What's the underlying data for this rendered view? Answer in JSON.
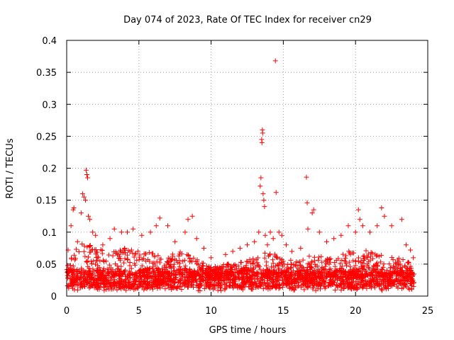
{
  "chart_data": {
    "type": "scatter",
    "title": "Day 074 of 2023, Rate Of TEC Index for receiver cn29",
    "xlabel": "GPS time / hours",
    "ylabel": "ROTI / TECUs",
    "xlim": [
      0,
      25
    ],
    "ylim": [
      0,
      0.4
    ],
    "x_ticks": [
      0,
      5,
      10,
      15,
      20,
      25
    ],
    "x_tick_labels": [
      "0",
      "5",
      "10",
      "15",
      "20",
      "25"
    ],
    "y_ticks": [
      0,
      0.05,
      0.1,
      0.15,
      0.2,
      0.25,
      0.3,
      0.35,
      0.4
    ],
    "y_tick_labels": [
      "0",
      "0.05",
      "0.1",
      "0.15",
      "0.2",
      "0.25",
      "0.3",
      "0.35",
      "0.4"
    ],
    "grid": true,
    "marker": "+",
    "point_color": "#ff0000",
    "grid_color": "#a0a0a0",
    "series": [
      {
        "points": [
          [
            0.1,
            0.072
          ],
          [
            0.3,
            0.11
          ],
          [
            0.45,
            0.135
          ],
          [
            0.5,
            0.138
          ],
          [
            0.75,
            0.085
          ],
          [
            1.0,
            0.13
          ],
          [
            1.1,
            0.16
          ],
          [
            1.2,
            0.155
          ],
          [
            1.3,
            0.15
          ],
          [
            1.35,
            0.197
          ],
          [
            1.4,
            0.19
          ],
          [
            1.45,
            0.185
          ],
          [
            1.5,
            0.125
          ],
          [
            1.6,
            0.12
          ],
          [
            1.8,
            0.1
          ],
          [
            2.0,
            0.095
          ],
          [
            2.5,
            0.08
          ],
          [
            3.0,
            0.09
          ],
          [
            3.3,
            0.105
          ],
          [
            3.8,
            0.1
          ],
          [
            4.2,
            0.1
          ],
          [
            4.6,
            0.105
          ],
          [
            5.2,
            0.095
          ],
          [
            5.8,
            0.1
          ],
          [
            6.2,
            0.11
          ],
          [
            6.45,
            0.122
          ],
          [
            7.0,
            0.11
          ],
          [
            7.5,
            0.085
          ],
          [
            8.2,
            0.1
          ],
          [
            8.4,
            0.12
          ],
          [
            8.7,
            0.125
          ],
          [
            9.0,
            0.09
          ],
          [
            9.5,
            0.075
          ],
          [
            10.0,
            0.06
          ],
          [
            11.0,
            0.065
          ],
          [
            11.5,
            0.07
          ],
          [
            12.0,
            0.075
          ],
          [
            12.5,
            0.08
          ],
          [
            13.0,
            0.085
          ],
          [
            13.3,
            0.1
          ],
          [
            13.4,
            0.172
          ],
          [
            13.45,
            0.185
          ],
          [
            13.5,
            0.245
          ],
          [
            13.52,
            0.24
          ],
          [
            13.55,
            0.26
          ],
          [
            13.57,
            0.255
          ],
          [
            13.6,
            0.16
          ],
          [
            13.65,
            0.15
          ],
          [
            13.7,
            0.14
          ],
          [
            13.75,
            0.095
          ],
          [
            13.9,
            0.08
          ],
          [
            14.1,
            0.1
          ],
          [
            14.3,
            0.09
          ],
          [
            14.45,
            0.368
          ],
          [
            14.5,
            0.162
          ],
          [
            14.7,
            0.1
          ],
          [
            14.9,
            0.095
          ],
          [
            15.2,
            0.08
          ],
          [
            15.6,
            0.07
          ],
          [
            16.2,
            0.075
          ],
          [
            16.6,
            0.186
          ],
          [
            16.65,
            0.146
          ],
          [
            16.7,
            0.105
          ],
          [
            17.0,
            0.13
          ],
          [
            17.1,
            0.135
          ],
          [
            17.5,
            0.1
          ],
          [
            18.0,
            0.085
          ],
          [
            18.5,
            0.09
          ],
          [
            19.0,
            0.095
          ],
          [
            19.5,
            0.11
          ],
          [
            20.0,
            0.1
          ],
          [
            20.2,
            0.135
          ],
          [
            20.3,
            0.12
          ],
          [
            20.5,
            0.11
          ],
          [
            21.0,
            0.1
          ],
          [
            21.5,
            0.11
          ],
          [
            21.8,
            0.138
          ],
          [
            22.0,
            0.125
          ],
          [
            22.5,
            0.11
          ],
          [
            23.2,
            0.12
          ],
          [
            23.5,
            0.08
          ],
          [
            23.8,
            0.072
          ],
          [
            24.0,
            0.06
          ]
        ]
      }
    ],
    "dense_band": {
      "x_range": [
        0,
        24.05
      ],
      "y_floor": 0.008,
      "upper_envelope": [
        [
          0,
          0.055
        ],
        [
          0.5,
          0.065
        ],
        [
          1.0,
          0.095
        ],
        [
          1.5,
          0.085
        ],
        [
          2.0,
          0.075
        ],
        [
          3.0,
          0.07
        ],
        [
          4.0,
          0.075
        ],
        [
          5.0,
          0.07
        ],
        [
          6.0,
          0.07
        ],
        [
          7.0,
          0.065
        ],
        [
          8.0,
          0.07
        ],
        [
          9.0,
          0.06
        ],
        [
          10.0,
          0.045
        ],
        [
          11.0,
          0.05
        ],
        [
          12.0,
          0.055
        ],
        [
          13.0,
          0.06
        ],
        [
          14.0,
          0.07
        ],
        [
          15.0,
          0.06
        ],
        [
          16.0,
          0.055
        ],
        [
          17.0,
          0.065
        ],
        [
          18.0,
          0.06
        ],
        [
          19.0,
          0.065
        ],
        [
          20.0,
          0.075
        ],
        [
          21.0,
          0.07
        ],
        [
          22.0,
          0.065
        ],
        [
          23.0,
          0.06
        ],
        [
          24.0,
          0.05
        ]
      ],
      "typical_level": 0.03
    }
  }
}
